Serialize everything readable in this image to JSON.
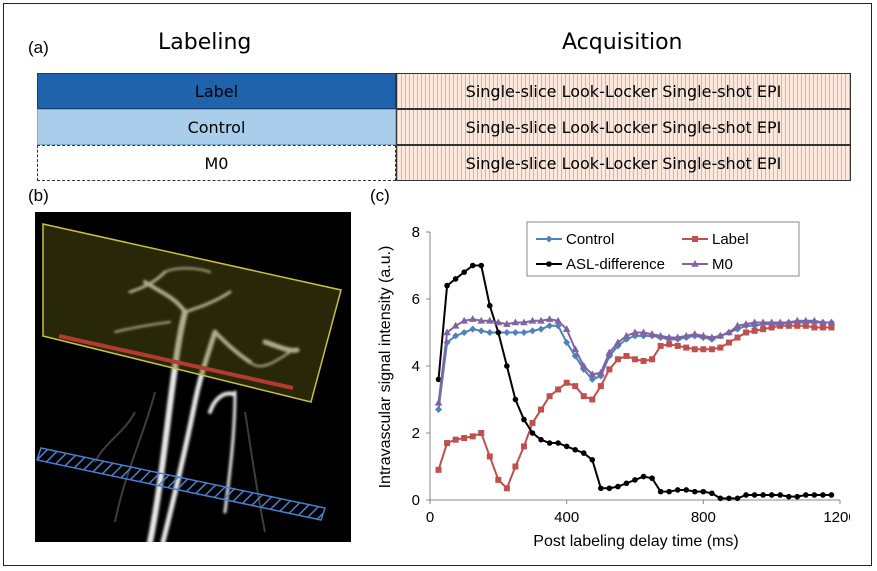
{
  "panels": {
    "a": "(a)",
    "b": "(b)",
    "c": "(c)"
  },
  "table": {
    "labeling_header": "Labeling",
    "acquisition_header": "Acquisition",
    "rows": [
      {
        "labeling": "Label",
        "acquisition": "Single-slice Look-Locker Single-shot EPI"
      },
      {
        "labeling": "Control",
        "acquisition": "Single-slice Look-Locker Single-shot EPI"
      },
      {
        "labeling": "M0",
        "acquisition": "Single-slice Look-Locker Single-shot EPI"
      }
    ]
  },
  "colors": {
    "label_cell": "#1f63ad",
    "control_cell": "#a9cdeb",
    "control": "#4f81bd",
    "label": "#c0504d",
    "asl": "#000000",
    "m0": "#8064a2"
  },
  "chart_data": {
    "type": "line",
    "xlabel": "Post labeling delay time (ms)",
    "ylabel": "Intravascular signal intensity (a.u.)",
    "xlim": [
      0,
      1200
    ],
    "ylim": [
      0,
      8
    ],
    "xticks": [
      "0",
      "400",
      "800",
      "1200"
    ],
    "yticks": [
      "0",
      "2",
      "4",
      "6",
      "8"
    ],
    "legend": "top-right",
    "x": [
      25,
      50,
      75,
      100,
      125,
      150,
      175,
      200,
      225,
      250,
      275,
      300,
      325,
      350,
      375,
      400,
      425,
      450,
      475,
      500,
      525,
      550,
      575,
      600,
      625,
      650,
      675,
      700,
      725,
      750,
      775,
      800,
      825,
      850,
      875,
      900,
      925,
      950,
      975,
      1000,
      1025,
      1050,
      1075,
      1100,
      1125,
      1150,
      1175
    ],
    "series": [
      {
        "name": "Control",
        "marker": "diamond",
        "values": [
          2.7,
          4.7,
          4.9,
          5.0,
          5.1,
          5.05,
          5.0,
          5.0,
          5.0,
          5.0,
          5.0,
          5.05,
          5.1,
          5.2,
          5.2,
          4.7,
          4.3,
          3.9,
          3.6,
          3.7,
          4.3,
          4.6,
          4.8,
          4.9,
          4.9,
          4.9,
          4.85,
          4.8,
          4.8,
          4.85,
          4.9,
          4.85,
          4.8,
          4.9,
          5.0,
          5.1,
          5.2,
          5.2,
          5.25,
          5.25,
          5.25,
          5.3,
          5.3,
          5.3,
          5.3,
          5.3,
          5.3
        ]
      },
      {
        "name": "Label",
        "marker": "square",
        "values": [
          0.9,
          1.7,
          1.8,
          1.85,
          1.9,
          2.0,
          1.3,
          0.6,
          0.35,
          1.0,
          1.6,
          2.3,
          2.7,
          3.1,
          3.3,
          3.5,
          3.4,
          3.1,
          3.0,
          3.4,
          3.9,
          4.2,
          4.3,
          4.2,
          4.15,
          4.2,
          4.6,
          4.65,
          4.6,
          4.55,
          4.5,
          4.5,
          4.5,
          4.55,
          4.7,
          4.85,
          5.0,
          5.05,
          5.1,
          5.15,
          5.2,
          5.2,
          5.2,
          5.2,
          5.15,
          5.15,
          5.15
        ]
      },
      {
        "name": "ASL-difference",
        "marker": "circle",
        "values": [
          3.6,
          6.4,
          6.6,
          6.8,
          7.0,
          7.0,
          5.8,
          5.0,
          4.0,
          3.0,
          2.4,
          2.0,
          1.8,
          1.7,
          1.7,
          1.6,
          1.5,
          1.4,
          1.2,
          0.35,
          0.35,
          0.4,
          0.5,
          0.6,
          0.7,
          0.65,
          0.25,
          0.25,
          0.3,
          0.3,
          0.25,
          0.25,
          0.2,
          0.05,
          0.05,
          0.05,
          0.15,
          0.15,
          0.15,
          0.15,
          0.15,
          0.1,
          0.1,
          0.15,
          0.15,
          0.15,
          0.15
        ]
      },
      {
        "name": "M0",
        "marker": "triangle",
        "values": [
          2.9,
          5.0,
          5.2,
          5.35,
          5.4,
          5.35,
          5.35,
          5.3,
          5.25,
          5.3,
          5.3,
          5.35,
          5.35,
          5.4,
          5.35,
          5.1,
          4.5,
          4.0,
          3.75,
          3.8,
          4.4,
          4.7,
          4.9,
          5.0,
          5.0,
          4.95,
          4.9,
          4.85,
          4.85,
          4.9,
          4.95,
          4.9,
          4.85,
          4.9,
          5.0,
          5.2,
          5.25,
          5.3,
          5.3,
          5.3,
          5.3,
          5.3,
          5.35,
          5.35,
          5.35,
          5.3,
          5.3
        ]
      }
    ]
  }
}
